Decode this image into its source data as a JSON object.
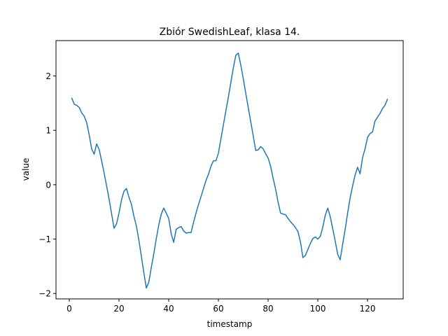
{
  "chart_data": {
    "type": "line",
    "title": "Zbiór SwedishLeaf, klasa 14.",
    "xlabel": "timestamp",
    "ylabel": "value",
    "xlim": [
      -5.35,
      134.35
    ],
    "ylim": [
      -2.1,
      2.65
    ],
    "xticks": [
      0,
      20,
      40,
      60,
      80,
      100,
      120
    ],
    "yticks": [
      -2,
      -1,
      0,
      1,
      2
    ],
    "xtick_labels": [
      "0",
      "20",
      "40",
      "60",
      "80",
      "100",
      "120"
    ],
    "ytick_labels": [
      "−2",
      "−1",
      "0",
      "1",
      "2"
    ],
    "grid": false,
    "line_color": "#1f77b4",
    "series": [
      {
        "x": [
          1,
          2,
          3,
          4,
          5,
          6,
          7,
          8,
          9,
          10,
          11,
          12,
          13,
          14,
          15,
          16,
          17,
          18,
          19,
          20,
          21,
          22,
          23,
          24,
          25,
          26,
          27,
          28,
          29,
          30,
          31,
          32,
          33,
          34,
          35,
          36,
          37,
          38,
          39,
          40,
          41,
          42,
          43,
          44,
          45,
          46,
          47,
          48,
          49,
          50,
          51,
          52,
          53,
          54,
          55,
          56,
          57,
          58,
          59,
          60,
          61,
          62,
          63,
          64,
          65,
          66,
          67,
          68,
          69,
          70,
          71,
          72,
          73,
          74,
          75,
          76,
          77,
          78,
          79,
          80,
          81,
          82,
          83,
          84,
          85,
          86,
          87,
          88,
          89,
          90,
          91,
          92,
          93,
          94,
          95,
          96,
          97,
          98,
          99,
          100,
          101,
          102,
          103,
          104,
          105,
          106,
          107,
          108,
          109,
          110,
          111,
          112,
          113,
          114,
          115,
          116,
          117,
          118,
          119,
          120,
          121,
          122,
          123,
          124,
          125,
          126,
          127,
          128
        ],
        "values": [
          1.59,
          1.48,
          1.46,
          1.42,
          1.32,
          1.26,
          1.14,
          0.92,
          0.66,
          0.56,
          0.75,
          0.65,
          0.44,
          0.22,
          -0.02,
          -0.26,
          -0.53,
          -0.8,
          -0.72,
          -0.52,
          -0.28,
          -0.12,
          -0.07,
          -0.23,
          -0.36,
          -0.58,
          -0.76,
          -1.02,
          -1.32,
          -1.62,
          -1.9,
          -1.79,
          -1.52,
          -1.27,
          -0.99,
          -0.74,
          -0.54,
          -0.43,
          -0.52,
          -0.62,
          -0.9,
          -1.06,
          -0.82,
          -0.79,
          -0.77,
          -0.85,
          -0.89,
          -0.88,
          -0.88,
          -0.69,
          -0.52,
          -0.36,
          -0.22,
          -0.07,
          0.08,
          0.19,
          0.34,
          0.44,
          0.44,
          0.58,
          0.84,
          1.1,
          1.36,
          1.61,
          1.88,
          2.15,
          2.38,
          2.42,
          2.2,
          1.95,
          1.68,
          1.42,
          1.16,
          0.9,
          0.63,
          0.64,
          0.7,
          0.66,
          0.57,
          0.49,
          0.34,
          0.12,
          -0.08,
          -0.32,
          -0.52,
          -0.54,
          -0.55,
          -0.62,
          -0.68,
          -0.73,
          -0.79,
          -0.86,
          -1.05,
          -1.34,
          -1.3,
          -1.19,
          -1.08,
          -0.99,
          -0.96,
          -1.0,
          -0.95,
          -0.78,
          -0.56,
          -0.43,
          -0.59,
          -0.81,
          -1.04,
          -1.28,
          -1.38,
          -1.09,
          -0.82,
          -0.52,
          -0.24,
          -0.02,
          0.18,
          0.32,
          0.2,
          0.5,
          0.66,
          0.87,
          0.94,
          0.97,
          1.17,
          1.24,
          1.31,
          1.4,
          1.46,
          1.57
        ]
      }
    ]
  }
}
